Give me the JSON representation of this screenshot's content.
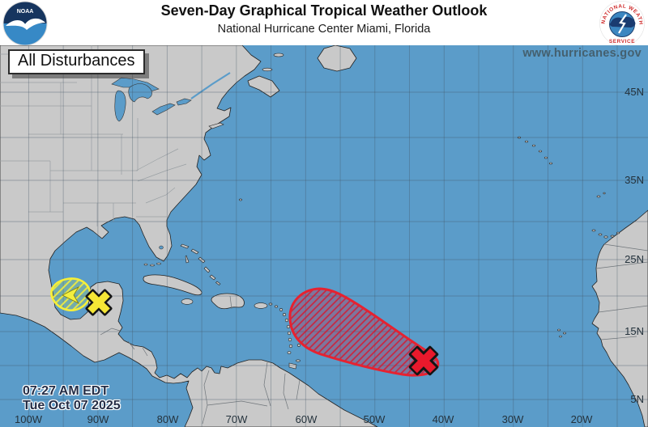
{
  "header": {
    "title": "Seven-Day Graphical Tropical Weather Outlook",
    "subtitle": "National Hurricane Center  Miami, Florida"
  },
  "logos": {
    "noaa_text": "NOAA",
    "nws_arc_top": "NATIONAL WEATHER",
    "nws_arc_bottom": "SERVICE"
  },
  "map": {
    "mode_label": "All Disturbances",
    "website": "www.hurricanes.gov",
    "timestamp": {
      "line1": "07:27 AM EDT",
      "line2": "Tue Oct 07 2025"
    },
    "lat_labels": [
      "45N",
      "35N",
      "25N",
      "15N",
      "5N"
    ],
    "lon_labels": [
      "100W",
      "90W",
      "80W",
      "70W",
      "60W",
      "50W",
      "40W",
      "30W",
      "20W"
    ],
    "disturbances": [
      {
        "area": "Bay of Campeche / southern Gulf",
        "outline_color": "#f6ef38",
        "marker": "X",
        "marker_color": "#f5e636",
        "motion": "westward arrow"
      },
      {
        "area": "Central tropical Atlantic",
        "outline_color": "#e62230",
        "marker": "X",
        "marker_color": "#e8192c"
      }
    ],
    "colors": {
      "ocean": "#5b9cc9",
      "land": "#c9c9c9",
      "yellow_area": "#f6ef38",
      "red_area": "#e62230"
    }
  }
}
